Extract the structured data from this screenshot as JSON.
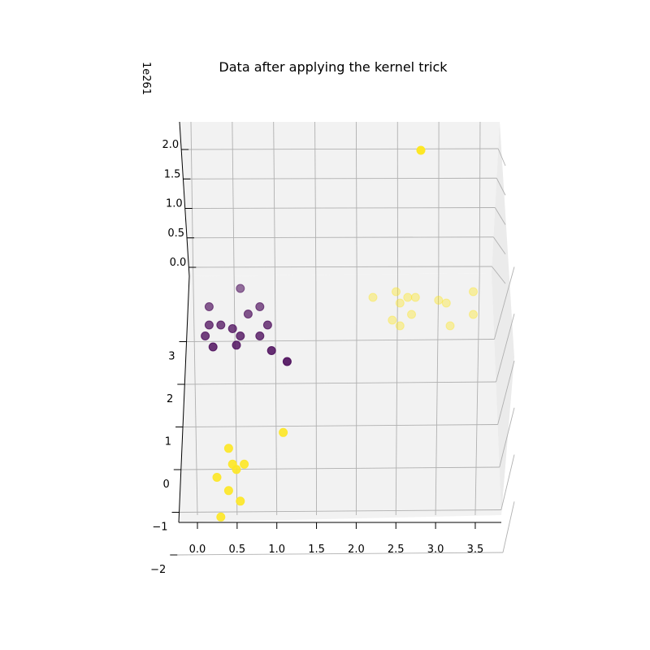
{
  "chart_data": {
    "type": "scatter",
    "projection": "3d",
    "title": "Data after applying the kernel trick",
    "offset_label": "1e261",
    "xlabel": "",
    "ylabel": "",
    "zlabel": "",
    "grid": true,
    "x_ticks": [
      "0.0",
      "0.5",
      "1.0",
      "1.5",
      "2.0",
      "2.5",
      "3.0",
      "3.5"
    ],
    "y_ticks": [
      "−2",
      "−1",
      "0",
      "1",
      "2",
      "3"
    ],
    "z_ticks": [
      "0.0",
      "0.5",
      "1.0",
      "1.5",
      "2.0"
    ],
    "colors": {
      "class_0": "#440154",
      "class_1": "#fde725"
    },
    "series": [
      {
        "class": 0,
        "points": [
          {
            "x": 0.55,
            "y": 3.5,
            "z": 0.0
          },
          {
            "x": 0.15,
            "y": 3.0,
            "z": 0.0
          },
          {
            "x": 0.8,
            "y": 3.0,
            "z": 0.0
          },
          {
            "x": 0.65,
            "y": 2.8,
            "z": 0.0
          },
          {
            "x": 0.15,
            "y": 2.5,
            "z": 0.0
          },
          {
            "x": 0.3,
            "y": 2.5,
            "z": 0.0
          },
          {
            "x": 0.9,
            "y": 2.5,
            "z": 0.0
          },
          {
            "x": 0.45,
            "y": 2.4,
            "z": 0.0
          },
          {
            "x": 0.1,
            "y": 2.2,
            "z": 0.0
          },
          {
            "x": 0.55,
            "y": 2.2,
            "z": 0.0
          },
          {
            "x": 0.8,
            "y": 2.2,
            "z": 0.0
          },
          {
            "x": 0.2,
            "y": 1.9,
            "z": 0.0
          },
          {
            "x": 0.5,
            "y": 1.95,
            "z": 0.0
          },
          {
            "x": 0.95,
            "y": 1.8,
            "z": 0.0
          },
          {
            "x": 1.15,
            "y": 1.5,
            "z": 0.0
          }
        ]
      },
      {
        "class": 1,
        "points": [
          {
            "x": 2.85,
            "y": 0.0,
            "z": 2.0
          },
          {
            "x": 2.2,
            "y": 0.0,
            "z": 0.0
          },
          {
            "x": 2.5,
            "y": 0.1,
            "z": 0.0
          },
          {
            "x": 2.55,
            "y": -0.1,
            "z": 0.0
          },
          {
            "x": 2.65,
            "y": 0.0,
            "z": 0.0
          },
          {
            "x": 2.75,
            "y": 0.0,
            "z": 0.0
          },
          {
            "x": 3.05,
            "y": -0.05,
            "z": 0.0
          },
          {
            "x": 3.15,
            "y": -0.1,
            "z": 0.0
          },
          {
            "x": 3.5,
            "y": 0.1,
            "z": 0.0
          },
          {
            "x": 2.7,
            "y": -0.3,
            "z": 0.0
          },
          {
            "x": 2.45,
            "y": -0.4,
            "z": 0.0
          },
          {
            "x": 2.55,
            "y": -0.5,
            "z": 0.0
          },
          {
            "x": 3.2,
            "y": -0.5,
            "z": 0.0
          },
          {
            "x": 3.5,
            "y": -0.3,
            "z": 0.0
          },
          {
            "x": 1.1,
            "y": 0.15,
            "z": 0.0
          },
          {
            "x": 0.4,
            "y": -0.15,
            "z": 0.0
          },
          {
            "x": 0.6,
            "y": -0.45,
            "z": 0.0
          },
          {
            "x": 0.45,
            "y": -0.45,
            "z": 0.0
          },
          {
            "x": 0.5,
            "y": -0.55,
            "z": 0.0
          },
          {
            "x": 0.25,
            "y": -0.7,
            "z": 0.0
          },
          {
            "x": 0.4,
            "y": -0.95,
            "z": 0.0
          },
          {
            "x": 0.55,
            "y": -1.15,
            "z": 0.0
          },
          {
            "x": 0.3,
            "y": -1.45,
            "z": 0.0
          }
        ]
      }
    ]
  }
}
